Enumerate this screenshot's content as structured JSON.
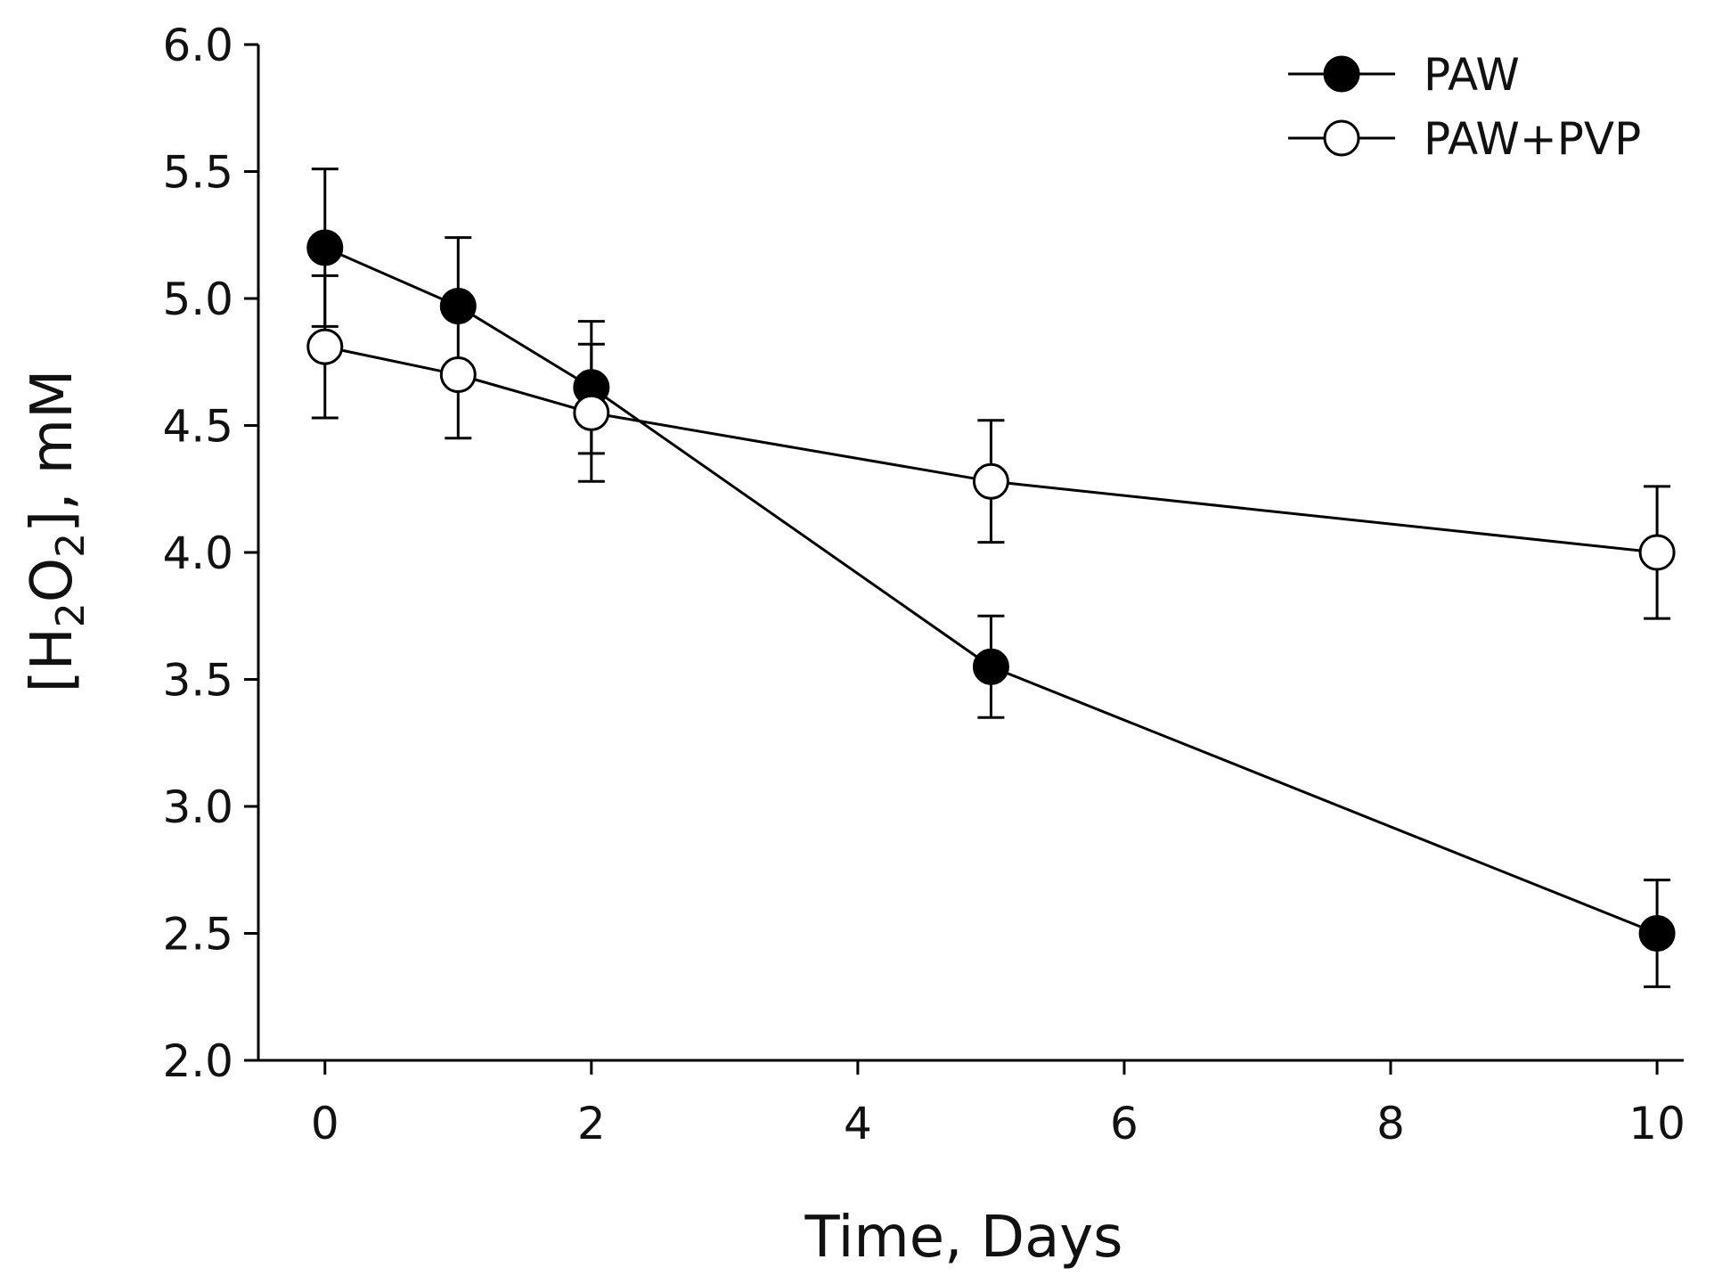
{
  "chart_data": {
    "type": "line",
    "title": "",
    "xlabel": "Time, Days",
    "ylabel": {
      "bracket_open": "[",
      "h": "H",
      "sub1": "2",
      "o": "O",
      "sub2": "2",
      "rest": "], mM"
    },
    "xlim": [
      -0.5,
      10.2
    ],
    "ylim": [
      2.0,
      6.0
    ],
    "x_ticks": [
      0,
      2,
      4,
      6,
      8,
      10
    ],
    "x_tick_labels": [
      "0",
      "2",
      "4",
      "6",
      "8",
      "10"
    ],
    "y_ticks": [
      2.0,
      2.5,
      3.0,
      3.5,
      4.0,
      4.5,
      5.0,
      5.5,
      6.0
    ],
    "y_tick_labels": [
      "2.0",
      "2.5",
      "3.0",
      "3.5",
      "4.0",
      "4.5",
      "5.0",
      "5.5",
      "6.0"
    ],
    "grid": false,
    "legend_position": "top-right",
    "series": [
      {
        "name": "PAW",
        "marker": "filled-circle",
        "color": "#000000",
        "x": [
          0,
          1,
          2,
          5,
          10
        ],
        "y": [
          5.2,
          4.97,
          4.65,
          3.55,
          2.5
        ],
        "err_upper": [
          5.51,
          5.24,
          4.91,
          3.75,
          2.71
        ],
        "err_lower": [
          4.89,
          4.7,
          4.39,
          3.35,
          2.29
        ]
      },
      {
        "name": "PAW+PVP",
        "marker": "open-circle",
        "color": "#000000",
        "x": [
          0,
          1,
          2,
          5,
          10
        ],
        "y": [
          4.81,
          4.7,
          4.55,
          4.28,
          4.0
        ],
        "err_upper": [
          5.09,
          4.7,
          4.82,
          4.52,
          4.26
        ],
        "err_lower": [
          4.53,
          4.45,
          4.28,
          4.04,
          3.74
        ]
      }
    ]
  }
}
